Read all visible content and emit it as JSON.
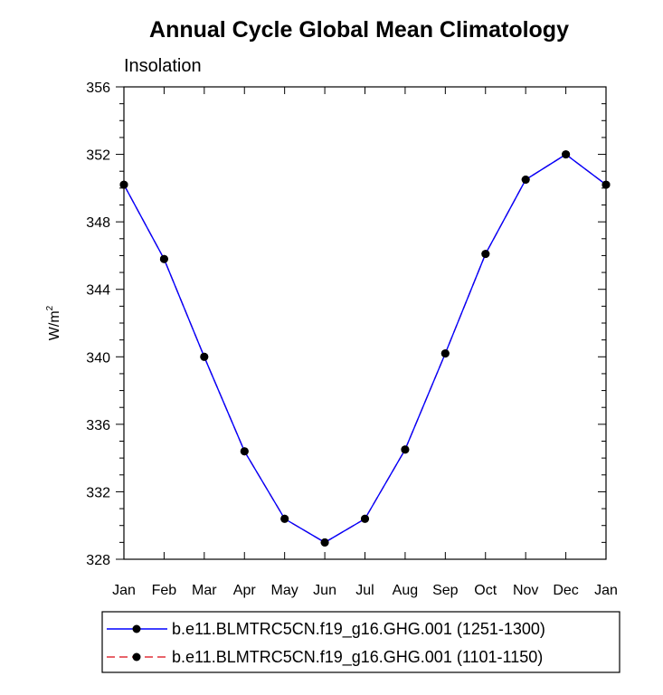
{
  "chart_data": {
    "type": "line",
    "title": "Annual Cycle Global Mean Climatology",
    "subtitle": "Insolation",
    "xlabel": "",
    "ylabel": "W/m",
    "ylabel_superscript": "2",
    "categories": [
      "Jan",
      "Feb",
      "Mar",
      "Apr",
      "May",
      "Jun",
      "Jul",
      "Aug",
      "Sep",
      "Oct",
      "Nov",
      "Dec",
      "Jan"
    ],
    "ylim": [
      328,
      356
    ],
    "yticks": [
      328,
      332,
      336,
      340,
      344,
      348,
      352,
      356
    ],
    "series": [
      {
        "name": "b.e11.BLMTRC5CN.f19_g16.GHG.001 (1251-1300)",
        "color": "#0000ff",
        "style": "solid",
        "marker": "circle",
        "values": [
          350.2,
          345.8,
          340.0,
          334.4,
          330.4,
          329.0,
          330.4,
          334.5,
          340.2,
          346.1,
          350.5,
          352.0,
          350.2
        ]
      },
      {
        "name": "b.e11.BLMTRC5CN.f19_g16.GHG.001 (1101-1150)",
        "color": "#e0303a",
        "style": "dashed",
        "marker": "circle",
        "values": [
          350.2,
          345.8,
          340.0,
          334.4,
          330.4,
          329.0,
          330.4,
          334.5,
          340.2,
          346.1,
          350.5,
          352.0,
          350.2
        ]
      }
    ],
    "legend_position": "bottom"
  }
}
